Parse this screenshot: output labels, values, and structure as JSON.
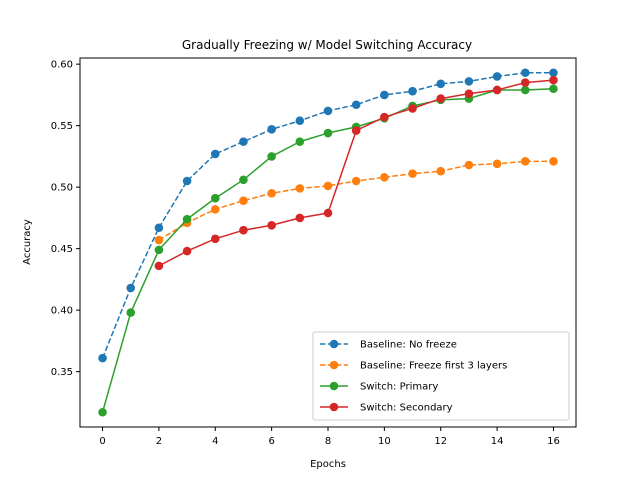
{
  "chart_data": {
    "type": "line",
    "title": "Gradually Freezing w/ Model Switching Accuracy",
    "xlabel": "Epochs",
    "ylabel": "Accuracy",
    "xlim": [
      -0.8,
      16.8
    ],
    "ylim": [
      0.305,
      0.605
    ],
    "xticks": [
      0,
      2,
      4,
      6,
      8,
      10,
      12,
      14,
      16
    ],
    "yticks": [
      0.35,
      0.4,
      0.45,
      0.5,
      0.55,
      0.6
    ],
    "ytick_labels": [
      "0.35",
      "0.40",
      "0.45",
      "0.50",
      "0.55",
      "0.60"
    ],
    "grid": false,
    "legend_position": "lower right",
    "series": [
      {
        "name": "Baseline: No freeze",
        "color": "#1f77b4",
        "linestyle": "dashed",
        "x": [
          0,
          1,
          2,
          3,
          4,
          5,
          6,
          7,
          8,
          9,
          10,
          11,
          12,
          13,
          14,
          15,
          16
        ],
        "values": [
          0.361,
          0.418,
          0.467,
          0.505,
          0.527,
          0.537,
          0.547,
          0.554,
          0.562,
          0.567,
          0.575,
          0.578,
          0.584,
          0.586,
          0.59,
          0.593,
          0.593
        ]
      },
      {
        "name": "Baseline: Freeze first 3 layers",
        "color": "#ff7f0e",
        "linestyle": "dashed",
        "x": [
          2,
          3,
          4,
          5,
          6,
          7,
          8,
          9,
          10,
          11,
          12,
          13,
          14,
          15,
          16
        ],
        "values": [
          0.457,
          0.471,
          0.482,
          0.489,
          0.495,
          0.499,
          0.501,
          0.505,
          0.508,
          0.511,
          0.513,
          0.518,
          0.519,
          0.521,
          0.521
        ]
      },
      {
        "name": "Switch: Primary",
        "color": "#2ca02c",
        "linestyle": "solid",
        "x": [
          0,
          1,
          2,
          3,
          4,
          5,
          6,
          7,
          8,
          9,
          10,
          11,
          12,
          13,
          14,
          15,
          16
        ],
        "values": [
          0.317,
          0.398,
          0.449,
          0.474,
          0.491,
          0.506,
          0.525,
          0.537,
          0.544,
          0.549,
          0.556,
          0.566,
          0.571,
          0.572,
          0.579,
          0.579,
          0.58
        ]
      },
      {
        "name": "Switch: Secondary",
        "color": "#d62728",
        "linestyle": "solid",
        "x": [
          2,
          3,
          4,
          5,
          6,
          7,
          8,
          9,
          10,
          11,
          12,
          13,
          14,
          15,
          16
        ],
        "values": [
          0.436,
          0.448,
          0.458,
          0.465,
          0.469,
          0.475,
          0.479,
          0.546,
          0.557,
          0.564,
          0.572,
          0.576,
          0.579,
          0.585,
          0.587
        ]
      }
    ]
  }
}
